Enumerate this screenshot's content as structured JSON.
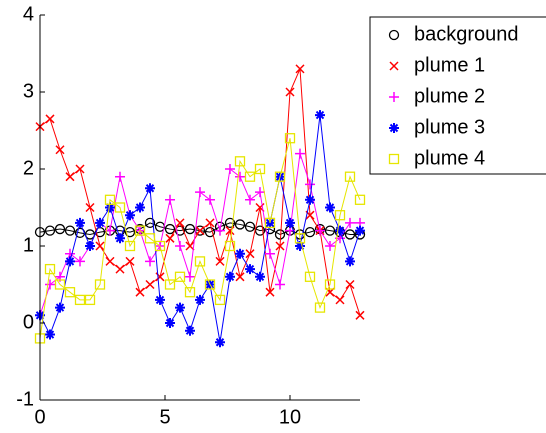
{
  "chart_data": {
    "type": "line",
    "x": [
      0,
      0.4,
      0.8,
      1.2,
      1.6,
      2,
      2.4,
      2.8,
      3.2,
      3.6,
      4,
      4.4,
      4.8,
      5.2,
      5.6,
      6,
      6.4,
      6.8,
      7.2,
      7.6,
      8,
      8.4,
      8.8,
      9.2,
      9.6,
      10,
      10.4,
      10.8,
      11.2,
      11.6,
      12,
      12.4,
      12.8
    ],
    "series": [
      {
        "name": "background",
        "color": "#000000",
        "marker": "o",
        "values": [
          1.18,
          1.2,
          1.22,
          1.2,
          1.17,
          1.15,
          1.18,
          1.2,
          1.2,
          1.18,
          1.22,
          1.3,
          1.25,
          1.22,
          1.2,
          1.22,
          1.2,
          1.18,
          1.25,
          1.3,
          1.28,
          1.25,
          1.2,
          1.22,
          1.15,
          1.2,
          1.15,
          1.18,
          1.22,
          1.2,
          1.18,
          1.15,
          1.15
        ]
      },
      {
        "name": "plume 1",
        "color": "#ff0000",
        "marker": "x",
        "values": [
          2.55,
          2.65,
          2.25,
          1.9,
          2.0,
          1.5,
          1.0,
          0.8,
          0.7,
          0.8,
          0.4,
          0.5,
          0.6,
          1.1,
          1.3,
          1.0,
          1.2,
          1.3,
          0.8,
          1.2,
          0.6,
          0.9,
          1.5,
          0.4,
          1.0,
          3.0,
          3.3,
          1.4,
          1.2,
          0.4,
          0.3,
          0.5,
          0.1
        ]
      },
      {
        "name": "plume 2",
        "color": "#ff00ff",
        "marker": "+",
        "values": [
          0.1,
          0.5,
          0.6,
          0.9,
          0.8,
          1.0,
          1.3,
          1.2,
          1.9,
          1.4,
          1.2,
          0.8,
          1.0,
          1.6,
          1.0,
          0.6,
          1.7,
          1.6,
          1.2,
          2.0,
          1.9,
          1.6,
          1.7,
          0.9,
          0.5,
          1.2,
          2.2,
          1.8,
          1.2,
          1.0,
          1.1,
          1.3,
          1.3
        ]
      },
      {
        "name": "plume 3",
        "color": "#0000ff",
        "marker": "*",
        "values": [
          0.1,
          -0.15,
          0.2,
          0.8,
          1.3,
          1.0,
          1.3,
          1.5,
          1.1,
          1.4,
          1.5,
          1.75,
          0.3,
          0.0,
          0.2,
          -0.1,
          0.3,
          0.5,
          -0.25,
          0.6,
          0.9,
          0.7,
          0.6,
          1.3,
          1.9,
          1.3,
          1.0,
          1.6,
          2.7,
          1.5,
          1.2,
          0.8,
          1.2
        ]
      },
      {
        "name": "plume 4",
        "color": "#e6e600",
        "marker": "s",
        "values": [
          -0.2,
          0.7,
          0.5,
          0.4,
          0.3,
          0.3,
          0.5,
          1.6,
          1.5,
          1.0,
          1.2,
          1.1,
          1.0,
          0.5,
          0.6,
          0.4,
          0.8,
          0.5,
          0.3,
          1.0,
          2.1,
          1.9,
          2.0,
          1.3,
          1.9,
          2.4,
          1.1,
          0.6,
          0.2,
          0.5,
          1.4,
          1.9,
          1.6
        ]
      }
    ],
    "xlim": [
      0,
      12.8
    ],
    "ylim": [
      -1,
      4
    ],
    "xticks": [
      0,
      5,
      10
    ],
    "yticks": [
      -1,
      0,
      1,
      2,
      3,
      4
    ],
    "legend": "upper-right"
  }
}
